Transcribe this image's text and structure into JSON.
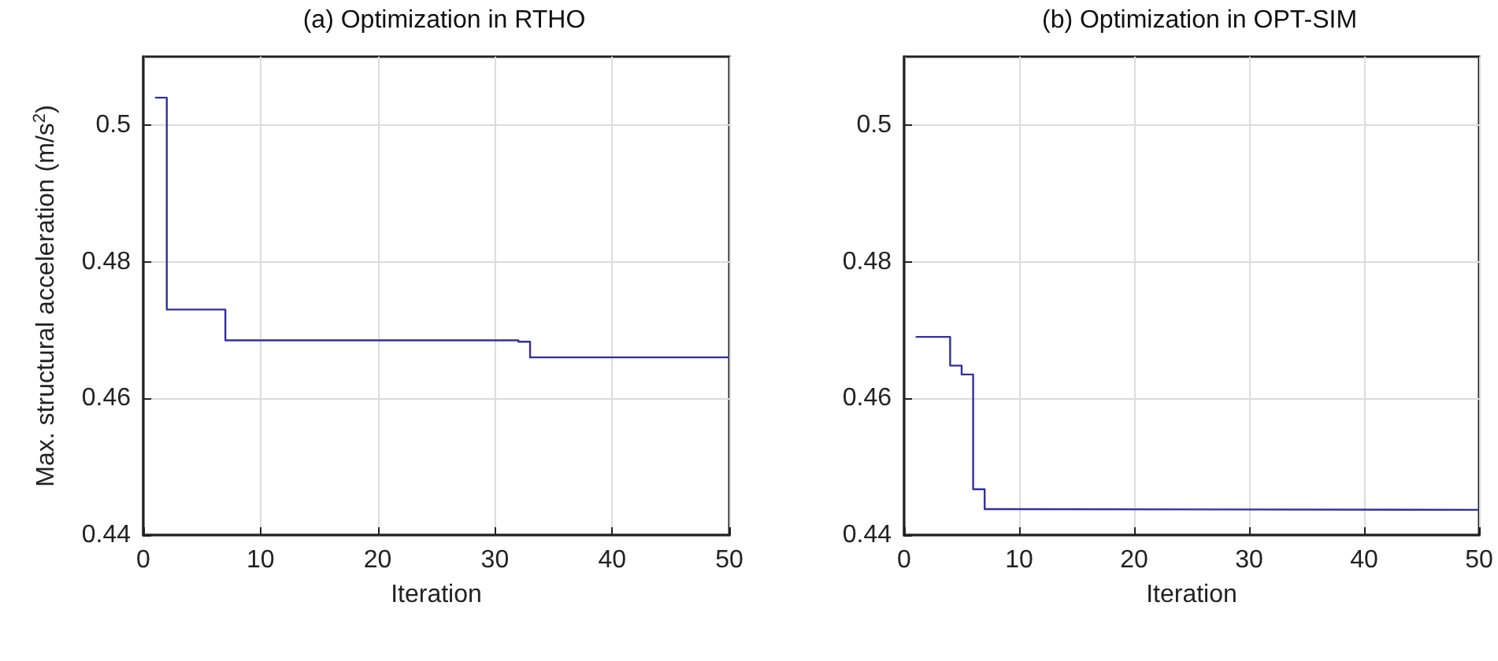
{
  "chart_data": [
    {
      "type": "step",
      "title": "(a) Optimization in RTHO",
      "xlabel": "Iteration",
      "ylabel": "Max. structural acceleration (m/s$^{2}$)",
      "x": [
        1,
        2,
        7,
        32,
        33,
        50
      ],
      "series": [
        {
          "color": "#3030a0",
          "values": [
            0.504,
            0.473,
            0.4685,
            0.4683,
            0.466,
            0.466
          ]
        }
      ],
      "xlim": [
        0,
        50
      ],
      "xticks": [
        0,
        10,
        20,
        30,
        40,
        50
      ],
      "ylim": [
        0.44,
        0.51
      ],
      "yticks": [
        0.44,
        0.46,
        0.48,
        0.5
      ],
      "grid": true,
      "marker": "none"
    },
    {
      "type": "step",
      "title": "(b) Optimization in OPT-SIM",
      "xlabel": "Iteration",
      "x": [
        1,
        4,
        5,
        6,
        7,
        8,
        50
      ],
      "series": [
        {
          "color": "#3030a0",
          "values": [
            0.469,
            0.4648,
            0.4635,
            0.4467,
            0.4438,
            0.4437,
            0.4437
          ]
        }
      ],
      "xlim": [
        0,
        50
      ],
      "xticks": [
        0,
        10,
        20,
        30,
        40,
        50
      ],
      "ylim": [
        0.44,
        0.51
      ],
      "yticks": [
        0.44,
        0.46,
        0.48,
        0.5
      ],
      "grid": true,
      "marker": "none"
    }
  ]
}
